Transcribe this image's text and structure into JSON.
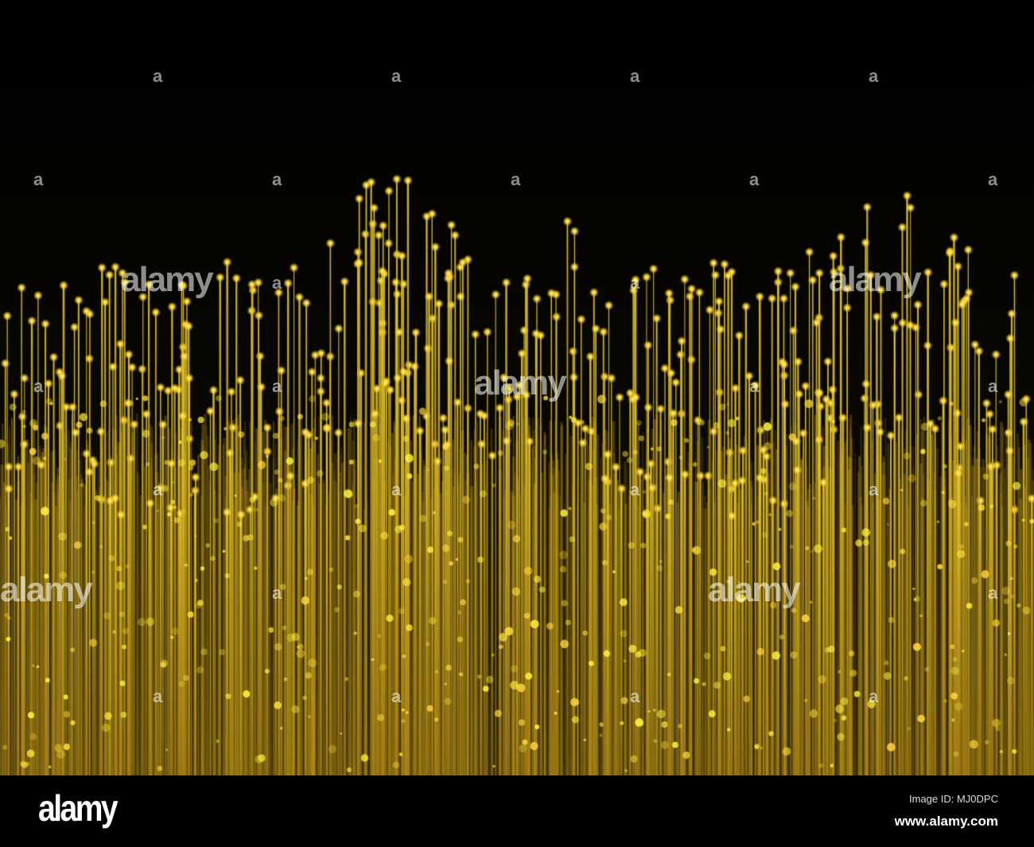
{
  "watermark": {
    "text": "alamy",
    "small_mark": "a"
  },
  "footer": {
    "logo": "alamy",
    "image_id": "Image ID: MJ0DPC",
    "website": "www.alamy.com"
  },
  "colors": {
    "fiber": "#d6b21c",
    "glow": "#fff27a",
    "background": "#000000"
  }
}
